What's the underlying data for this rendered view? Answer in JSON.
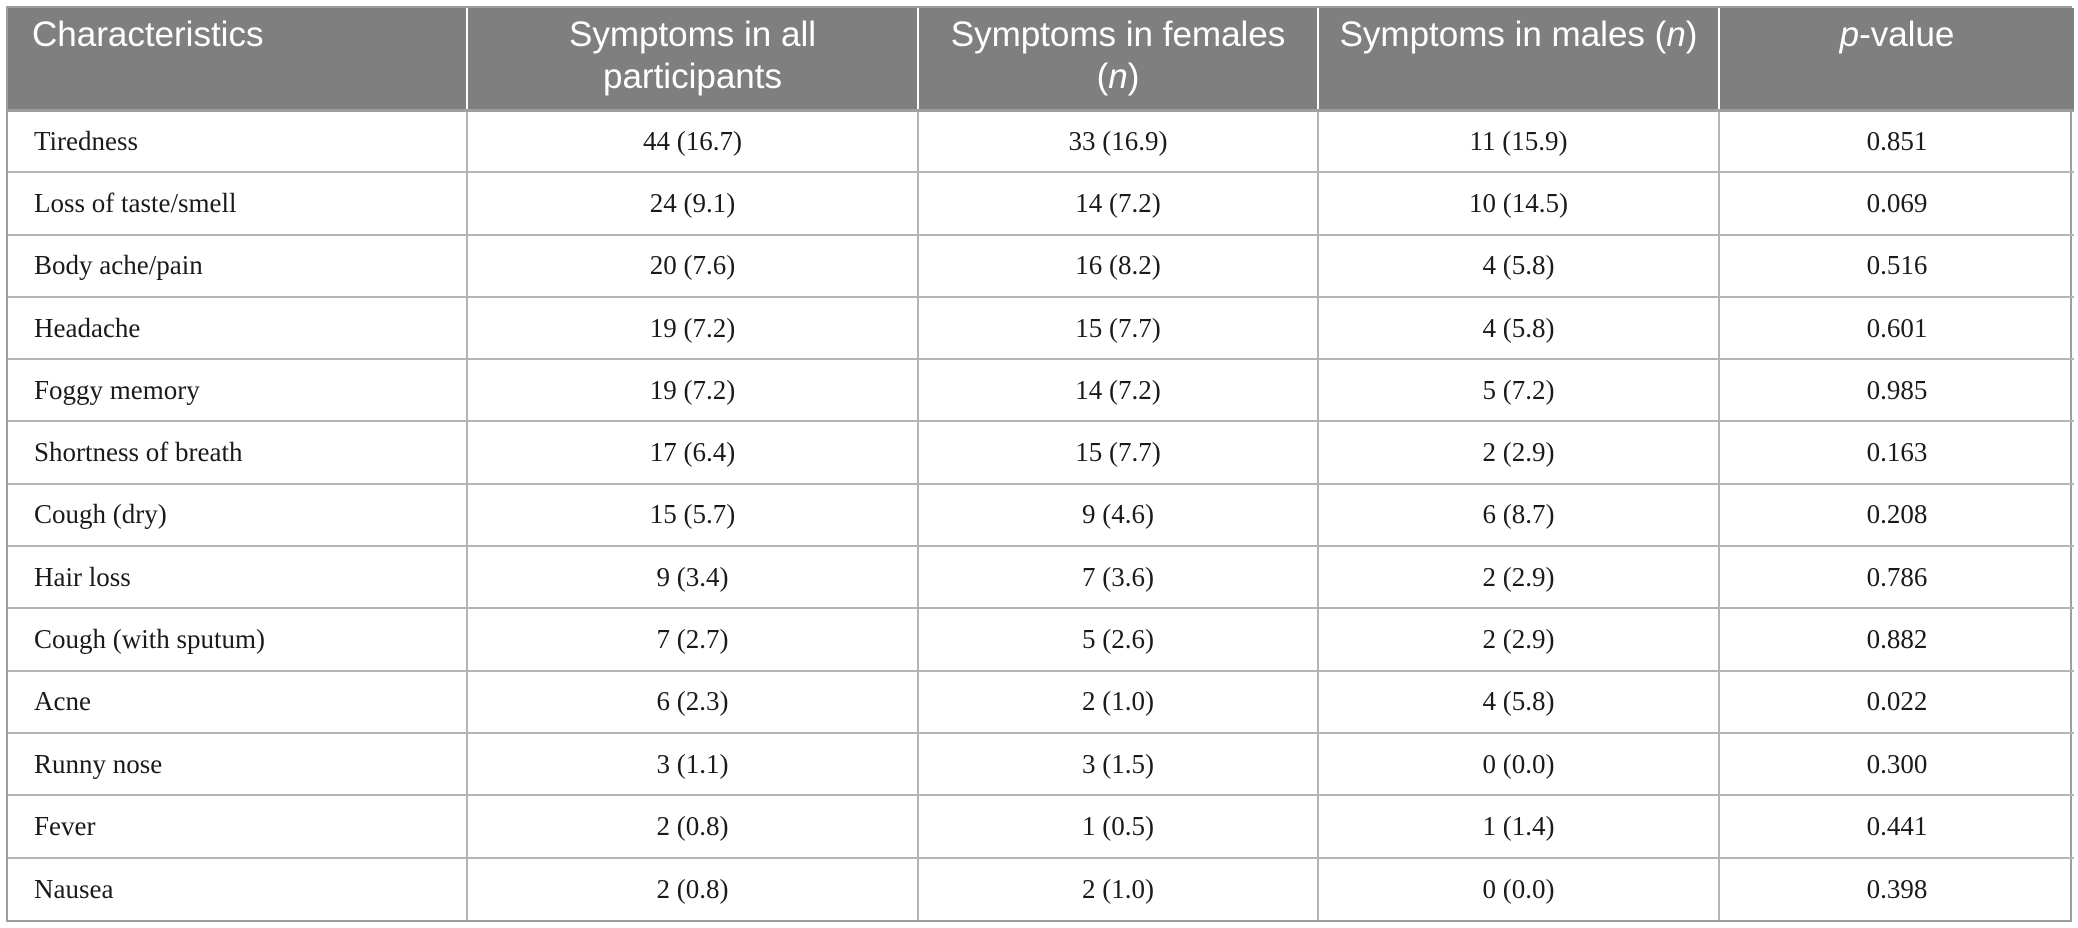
{
  "header": {
    "col0": "Characteristics",
    "col1": "Symptoms in all participants",
    "col2_pre": "Symptoms in females (",
    "col2_n": "n",
    "col2_post": ")",
    "col3_pre": "Symptoms in males (",
    "col3_n": "n",
    "col3_post": ")",
    "col4_p": "p",
    "col4_rest": "-value"
  },
  "rows": [
    {
      "label": "Tiredness",
      "all": "44 (16.7)",
      "females": "33 (16.9)",
      "males": "11 (15.9)",
      "p": "0.851"
    },
    {
      "label": "Loss of taste/smell",
      "all": "24 (9.1)",
      "females": "14 (7.2)",
      "males": "10 (14.5)",
      "p": "0.069"
    },
    {
      "label": "Body ache/pain",
      "all": "20 (7.6)",
      "females": "16 (8.2)",
      "males": "4 (5.8)",
      "p": "0.516"
    },
    {
      "label": "Headache",
      "all": "19 (7.2)",
      "females": "15 (7.7)",
      "males": "4 (5.8)",
      "p": "0.601"
    },
    {
      "label": "Foggy memory",
      "all": "19 (7.2)",
      "females": "14 (7.2)",
      "males": "5 (7.2)",
      "p": "0.985"
    },
    {
      "label": "Shortness of breath",
      "all": "17 (6.4)",
      "females": "15 (7.7)",
      "males": "2 (2.9)",
      "p": "0.163"
    },
    {
      "label": "Cough (dry)",
      "all": "15 (5.7)",
      "females": "9 (4.6)",
      "males": "6 (8.7)",
      "p": "0.208"
    },
    {
      "label": "Hair loss",
      "all": "9 (3.4)",
      "females": "7 (3.6)",
      "males": "2 (2.9)",
      "p": "0.786"
    },
    {
      "label": "Cough (with sputum)",
      "all": "7 (2.7)",
      "females": "5 (2.6)",
      "males": "2 (2.9)",
      "p": "0.882"
    },
    {
      "label": "Acne",
      "all": "6 (2.3)",
      "females": "2 (1.0)",
      "males": "4 (5.8)",
      "p": "0.022"
    },
    {
      "label": "Runny nose",
      "all": "3 (1.1)",
      "females": "3 (1.5)",
      "males": "0 (0.0)",
      "p": "0.300"
    },
    {
      "label": "Fever",
      "all": "2 (0.8)",
      "females": "1 (0.5)",
      "males": "1 (1.4)",
      "p": "0.441"
    },
    {
      "label": "Nausea",
      "all": "2 (0.8)",
      "females": "2 (1.0)",
      "males": "0 (0.0)",
      "p": "0.398"
    }
  ]
}
